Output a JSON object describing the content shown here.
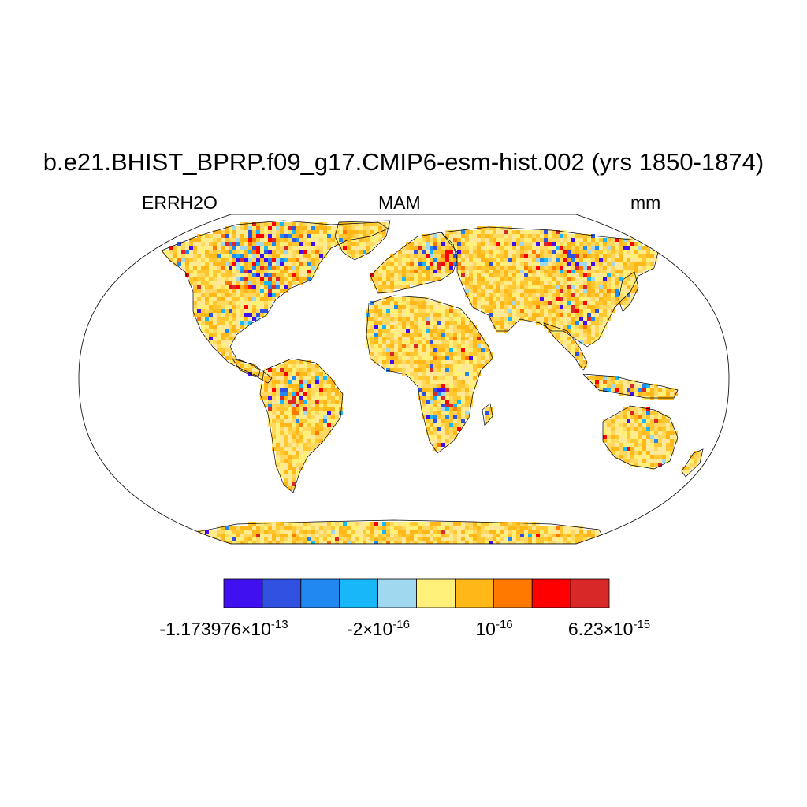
{
  "title": "b.e21.BHIST_BPRP.f09_g17.CMIP6-esm-hist.002 (yrs 1850-1874)",
  "left_label": "ERRH2O",
  "center_label": "MAM",
  "right_label": "mm",
  "projection": "Robinson",
  "colorbar": {
    "colors": [
      "#4010f0",
      "#3050e0",
      "#2088f0",
      "#18b8f8",
      "#a0d8f0",
      "#fff07a",
      "#ffb818",
      "#ff7800",
      "#ff0000",
      "#d82828"
    ],
    "labels": [
      {
        "mantissa": "-1.173976",
        "times": "×",
        "base": "10",
        "exp": "-13"
      },
      {
        "mantissa": "-2",
        "times": "×",
        "base": "10",
        "exp": "-16"
      },
      {
        "mantissa": "",
        "times": "",
        "base": "10",
        "exp": "-16"
      },
      {
        "mantissa": "6.23",
        "times": "×",
        "base": "10",
        "exp": "-15"
      }
    ]
  },
  "land_palette": [
    "#ffc830",
    "#ffd860",
    "#ffe898",
    "#fff07a",
    "#ffb818"
  ],
  "hotspot_palette": [
    "#4010f0",
    "#3050e0",
    "#2088f0",
    "#18b8f8",
    "#a0d8f0",
    "#ff7800",
    "#ff0000",
    "#d82828"
  ]
}
